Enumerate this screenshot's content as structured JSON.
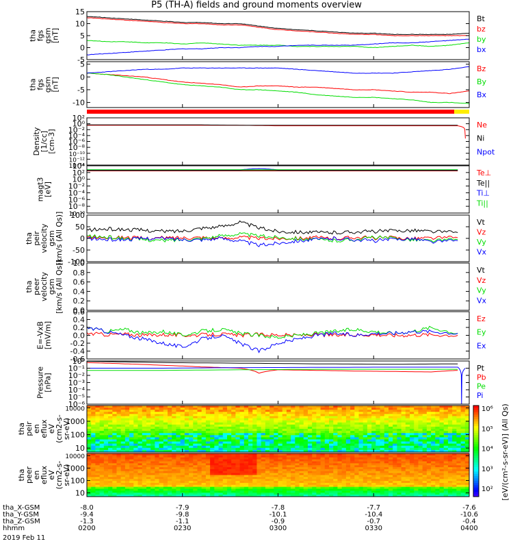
{
  "title": "P5 (TH-A) fields and ground moments overview",
  "date_label": "2019 Feb 11",
  "colors": {
    "black": "#000000",
    "red": "#ff0000",
    "green": "#00dd00",
    "blue": "#0000ff",
    "yellow": "#ffee00"
  },
  "chart_data": [
    {
      "type": "line",
      "ylabel": [
        "tha",
        "fgs",
        "gsm",
        "[nT]"
      ],
      "ylim": [
        -5,
        15
      ],
      "y_ticks": [
        "-5",
        "0",
        "5",
        "10",
        "15"
      ],
      "series": [
        {
          "name": "Bt",
          "color": "black",
          "x": [
            0,
            5,
            10,
            15,
            20,
            25,
            30,
            35,
            40,
            45,
            50,
            55,
            60,
            65,
            70,
            75,
            80,
            85,
            90,
            95,
            100
          ],
          "values": [
            13,
            12.5,
            12,
            11.5,
            11,
            10.5,
            10.5,
            10,
            10,
            9,
            8,
            7.5,
            7,
            6.5,
            6,
            6,
            5.5,
            5.5,
            5.5,
            5.5,
            6
          ]
        },
        {
          "name": "bz",
          "color": "red",
          "x": [
            0,
            5,
            10,
            15,
            20,
            25,
            30,
            35,
            40,
            45,
            50,
            55,
            60,
            65,
            70,
            75,
            80,
            85,
            90,
            95,
            100
          ],
          "values": [
            12.5,
            12,
            11.5,
            11,
            10.5,
            10,
            10,
            9.5,
            9.5,
            8.5,
            7.5,
            7,
            6.5,
            6,
            5.5,
            5.5,
            5,
            5,
            5,
            5,
            5
          ]
        },
        {
          "name": "by",
          "color": "green",
          "x": [
            0,
            5,
            10,
            15,
            20,
            25,
            30,
            35,
            40,
            45,
            50,
            55,
            60,
            65,
            70,
            75,
            80,
            85,
            90,
            95,
            100
          ],
          "values": [
            3,
            2.5,
            2.5,
            2,
            2,
            1.5,
            2,
            1.5,
            1,
            1,
            1,
            0.5,
            0.5,
            0.5,
            0.5,
            0,
            0.5,
            1,
            0.5,
            1,
            2
          ]
        },
        {
          "name": "bx",
          "color": "blue",
          "x": [
            0,
            5,
            10,
            15,
            20,
            25,
            30,
            35,
            40,
            45,
            50,
            55,
            60,
            65,
            70,
            75,
            80,
            85,
            90,
            95,
            100
          ],
          "values": [
            -3,
            -2.5,
            -2,
            -1.5,
            -1,
            -0.5,
            -0.5,
            0,
            0,
            0.5,
            0.5,
            1,
            1,
            1,
            1,
            1.5,
            2,
            2,
            2.5,
            3,
            3.5
          ]
        }
      ]
    },
    {
      "type": "line",
      "ylabel": [
        "tha",
        "fgs",
        "gsm",
        "[nT]"
      ],
      "ylim": [
        -12,
        6
      ],
      "y_ticks": [
        "-10",
        "-5",
        "0",
        "5"
      ],
      "series": [
        {
          "name": "Bz",
          "color": "red",
          "x": [
            0,
            5,
            10,
            15,
            20,
            25,
            30,
            35,
            40,
            45,
            50,
            55,
            60,
            65,
            70,
            75,
            80,
            85,
            90,
            95,
            100
          ],
          "values": [
            1.5,
            1,
            0.5,
            0,
            -1,
            -2,
            -2.5,
            -3,
            -4,
            -3.5,
            -3.5,
            -4,
            -4,
            -4.5,
            -5,
            -5,
            -5.5,
            -6,
            -6,
            -6.5,
            -5.5
          ]
        },
        {
          "name": "By",
          "color": "green",
          "x": [
            0,
            5,
            10,
            15,
            20,
            25,
            30,
            35,
            40,
            45,
            50,
            55,
            60,
            65,
            70,
            75,
            80,
            85,
            90,
            95,
            100
          ],
          "values": [
            1.5,
            1,
            0,
            -1,
            -2,
            -3,
            -3.5,
            -4,
            -5,
            -5,
            -5.5,
            -6,
            -7,
            -7.5,
            -8,
            -8,
            -8.5,
            -9,
            -10,
            -10,
            -10.5
          ]
        },
        {
          "name": "Bx",
          "color": "blue",
          "x": [
            0,
            5,
            10,
            15,
            20,
            25,
            30,
            35,
            40,
            45,
            50,
            55,
            60,
            65,
            70,
            75,
            80,
            85,
            90,
            95,
            100
          ],
          "values": [
            1.5,
            2,
            2.5,
            3,
            3,
            3.5,
            3.5,
            3.5,
            3.5,
            3.5,
            3.5,
            3,
            2.5,
            2,
            1.5,
            1.5,
            1.5,
            2,
            2.5,
            3,
            4
          ]
        }
      ]
    },
    {
      "type": "line",
      "ylabel": [
        "Density",
        "[1/cc]",
        "[cm-3]"
      ],
      "y_scale": "log",
      "ylim": [
        1e-14,
        100
      ],
      "y_ticks": [
        "10⁻¹⁴",
        "10⁻¹²",
        "10⁻¹⁰",
        "10⁻⁸",
        "10⁻⁶",
        "10⁻⁴",
        "10⁻²",
        "10⁰",
        "10²"
      ],
      "series": [
        {
          "name": "Ne",
          "color": "red",
          "x": [
            0,
            10,
            20,
            30,
            40,
            50,
            60,
            70,
            80,
            90,
            97,
            99
          ],
          "values": [
            0.3,
            0.3,
            0.3,
            0.3,
            0.3,
            0.2,
            0.2,
            0.2,
            0.2,
            0.2,
            0.2,
            1e-05
          ]
        },
        {
          "name": "Ni",
          "color": "black",
          "x": [
            0,
            10,
            20,
            30,
            40,
            50,
            60,
            70,
            80,
            90,
            97
          ],
          "values": [
            0.4,
            0.4,
            0.4,
            0.4,
            0.3,
            0.3,
            0.3,
            0.3,
            0.3,
            0.3,
            0.3
          ]
        },
        {
          "name": "Npot",
          "color": "blue",
          "x": [],
          "values": []
        }
      ]
    },
    {
      "type": "line",
      "ylabel": [
        "magt3",
        "[eV]"
      ],
      "y_scale": "log",
      "ylim": [
        1e-10,
        10000
      ],
      "y_ticks": [
        "10⁻¹⁰",
        "10⁻⁸",
        "10⁻⁶",
        "10⁻⁴",
        "10⁻²",
        "10⁰",
        "10²",
        "10⁴"
      ],
      "series": [
        {
          "name": "Te⊥",
          "color": "red",
          "x": [
            0,
            50,
            97
          ],
          "values": [
            300,
            300,
            300
          ]
        },
        {
          "name": "Te||",
          "color": "black",
          "x": [
            0,
            50,
            97
          ],
          "values": [
            400,
            400,
            400
          ]
        },
        {
          "name": "Ti⊥",
          "color": "blue",
          "x": [
            0,
            40,
            45,
            50,
            97
          ],
          "values": [
            600,
            600,
            1500,
            600,
            600
          ]
        },
        {
          "name": "Ti||",
          "color": "green",
          "x": [
            0,
            50,
            97
          ],
          "values": [
            700,
            700,
            700
          ]
        }
      ]
    },
    {
      "type": "line",
      "ylabel": [
        "tha",
        "peir",
        "velocity",
        "gsm",
        "[km/s (All Qs)]"
      ],
      "ylim": [
        -100,
        100
      ],
      "y_ticks": [
        "-100",
        "-50",
        "0",
        "50",
        "100"
      ],
      "series": [
        {
          "name": "Vt",
          "color": "black",
          "x": [
            0,
            5,
            10,
            15,
            20,
            25,
            30,
            35,
            40,
            45,
            50,
            55,
            60,
            65,
            70,
            75,
            80,
            85,
            90,
            97
          ],
          "values": [
            35,
            40,
            38,
            35,
            30,
            32,
            45,
            50,
            70,
            45,
            30,
            28,
            25,
            25,
            28,
            30,
            32,
            35,
            30,
            25
          ]
        },
        {
          "name": "Vz",
          "color": "red",
          "x": [
            0,
            5,
            10,
            15,
            20,
            25,
            30,
            35,
            40,
            45,
            50,
            55,
            60,
            65,
            70,
            75,
            80,
            85,
            90,
            97
          ],
          "values": [
            5,
            3,
            5,
            0,
            2,
            3,
            5,
            0,
            5,
            0,
            0,
            2,
            3,
            0,
            5,
            2,
            3,
            0,
            2,
            3
          ]
        },
        {
          "name": "Vy",
          "color": "green",
          "x": [
            0,
            5,
            10,
            15,
            20,
            25,
            30,
            35,
            40,
            45,
            50,
            55,
            60,
            65,
            70,
            75,
            80,
            85,
            90,
            97
          ],
          "values": [
            10,
            5,
            0,
            -5,
            -10,
            -5,
            0,
            10,
            20,
            10,
            5,
            0,
            -5,
            -10,
            -5,
            5,
            0,
            -5,
            -10,
            -5
          ]
        },
        {
          "name": "Vx",
          "color": "blue",
          "x": [
            0,
            5,
            10,
            15,
            20,
            25,
            30,
            35,
            40,
            45,
            50,
            55,
            60,
            65,
            70,
            75,
            80,
            85,
            90,
            97
          ],
          "values": [
            0,
            -5,
            -5,
            0,
            0,
            -5,
            -5,
            0,
            -10,
            -30,
            -20,
            -10,
            -5,
            0,
            -5,
            -10,
            -5,
            0,
            -15,
            -10
          ]
        }
      ]
    },
    {
      "type": "line",
      "ylabel": [
        "tha",
        "peer",
        "velocity",
        "gsm",
        "[km/s (All Qs)]"
      ],
      "ylim": [
        0,
        1
      ],
      "y_ticks": [
        "0.0",
        "0.2",
        "0.4",
        "0.6",
        "0.8",
        "1.0"
      ],
      "series": [
        {
          "name": "Vt",
          "color": "black",
          "x": [],
          "values": []
        },
        {
          "name": "Vz",
          "color": "red",
          "x": [],
          "values": []
        },
        {
          "name": "Vy",
          "color": "green",
          "x": [],
          "values": []
        },
        {
          "name": "Vx",
          "color": "blue",
          "x": [],
          "values": []
        }
      ]
    },
    {
      "type": "line",
      "ylabel": [
        "E=-VxB",
        "[mV/m]"
      ],
      "ylim": [
        -0.6,
        0.6
      ],
      "y_ticks": [
        "-0.6",
        "-0.4",
        "-0.2",
        "0.0",
        "0.2",
        "0.4",
        "0.6"
      ],
      "series": [
        {
          "name": "Ez",
          "color": "red",
          "x": [
            0,
            5,
            10,
            15,
            20,
            25,
            30,
            35,
            40,
            45,
            50,
            55,
            60,
            65,
            70,
            75,
            80,
            85,
            90,
            97
          ],
          "values": [
            0.05,
            0.02,
            0.03,
            0,
            0.02,
            0,
            0.01,
            0.03,
            0,
            0.02,
            0.01,
            0,
            0.02,
            0,
            0.01,
            0.02,
            0,
            0.01,
            0.02,
            0
          ]
        },
        {
          "name": "Ey",
          "color": "green",
          "x": [
            0,
            5,
            10,
            15,
            20,
            25,
            30,
            35,
            40,
            45,
            50,
            55,
            60,
            65,
            70,
            75,
            80,
            85,
            90,
            97
          ],
          "values": [
            0.2,
            0.1,
            0.15,
            0.05,
            0.1,
            0,
            0.1,
            0.15,
            0.05,
            0,
            -0.05,
            0,
            0.05,
            0.1,
            0.15,
            0.1,
            0.05,
            0.1,
            0.2,
            0.05
          ]
        },
        {
          "name": "Ex",
          "color": "blue",
          "x": [
            0,
            5,
            10,
            15,
            20,
            25,
            30,
            35,
            40,
            45,
            50,
            55,
            60,
            65,
            70,
            75,
            80,
            85,
            90,
            97
          ],
          "values": [
            0.2,
            0.1,
            0,
            -0.1,
            -0.2,
            -0.3,
            -0.1,
            0,
            -0.2,
            -0.4,
            -0.2,
            -0.1,
            0,
            0.05,
            0,
            0.05,
            0.05,
            0.1,
            0.1,
            0.05
          ]
        }
      ]
    },
    {
      "type": "line",
      "ylabel": [
        "Pressure",
        "[nPa]"
      ],
      "y_scale": "log",
      "ylim": [
        1e-06,
        1
      ],
      "y_ticks": [
        "10⁻⁶",
        "10⁻⁵",
        "10⁻⁴",
        "10⁻³",
        "10⁻²",
        "10⁻¹",
        "10⁰"
      ],
      "series": [
        {
          "name": "Pt",
          "color": "black",
          "x": [
            0,
            20,
            40,
            60,
            80,
            97
          ],
          "values": [
            0.9,
            0.6,
            0.5,
            0.4,
            0.35,
            0.4
          ]
        },
        {
          "name": "Pb",
          "color": "red",
          "x": [
            0,
            10,
            20,
            30,
            40,
            45,
            50,
            60,
            70,
            80,
            90,
            97
          ],
          "values": [
            0.6,
            0.4,
            0.25,
            0.15,
            0.1,
            0.02,
            0.06,
            0.05,
            0.04,
            0.035,
            0.03,
            0.05
          ]
        },
        {
          "name": "Pe",
          "color": "green",
          "x": [
            0,
            20,
            40,
            60,
            80,
            97
          ],
          "values": [
            0.05,
            0.05,
            0.06,
            0.07,
            0.07,
            0.07
          ]
        },
        {
          "name": "Pi",
          "color": "blue",
          "x": [
            0,
            20,
            40,
            60,
            80,
            97,
            98,
            99
          ],
          "values": [
            0.1,
            0.1,
            0.12,
            0.13,
            0.14,
            0.14,
            1e-06,
            0.1
          ]
        }
      ]
    },
    {
      "type": "heatmap",
      "ylabel": [
        "tha",
        "peir",
        "en",
        "eflux",
        "eV",
        "(cm2-s-",
        "sr-eV)"
      ],
      "y_scale": "log",
      "ylim": [
        5,
        15000
      ],
      "y_ticks": [
        "10",
        "100",
        "1000",
        "10000"
      ],
      "colorbar_ticks": [
        "10²",
        "10³",
        "10⁴",
        "10⁵",
        "10⁶"
      ]
    },
    {
      "type": "heatmap",
      "ylabel": [
        "tha",
        "peer",
        "en",
        "eflux",
        "eV",
        "(cm2-s-",
        "sr-eV)"
      ],
      "y_scale": "log",
      "ylim": [
        5,
        15000
      ],
      "y_ticks": [
        "10",
        "100",
        "1000",
        "10000"
      ],
      "colorbar_ticks": [
        "10²",
        "10³",
        "10⁴",
        "10⁵",
        "10⁶"
      ]
    }
  ],
  "colorbar_label": "[eV/(cm²-s-sr-eV)] (All Qs)",
  "x_axis": {
    "row_labels": [
      "tha_X-GSM",
      "tha_Y-GSM",
      "tha_Z-GSM",
      "hhmm"
    ],
    "ticks": [
      {
        "x": 0,
        "vals": [
          "-8.0",
          "-9.4",
          "-1.3",
          "0200"
        ]
      },
      {
        "x": 25,
        "vals": [
          "-7.9",
          "-9.8",
          "-1.1",
          "0230"
        ]
      },
      {
        "x": 50,
        "vals": [
          "-7.8",
          "-10.1",
          "-0.9",
          "0300"
        ]
      },
      {
        "x": 75,
        "vals": [
          "-7.7",
          "-10.4",
          "-0.7",
          "0330"
        ]
      },
      {
        "x": 100,
        "vals": [
          "-7.6",
          "-10.6",
          "-0.4",
          "0400"
        ]
      }
    ]
  }
}
